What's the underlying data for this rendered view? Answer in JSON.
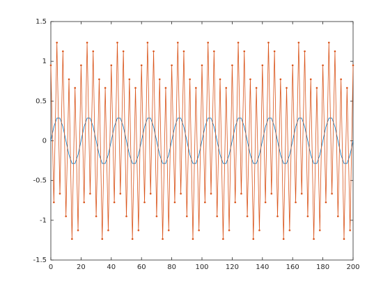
{
  "chart_data": {
    "type": "line",
    "x": [
      0,
      2,
      4,
      6,
      8,
      10,
      12,
      14,
      16,
      18,
      20,
      22,
      24,
      26,
      28,
      30,
      32,
      34,
      36,
      38,
      40,
      42,
      44,
      46,
      48,
      50,
      52,
      54,
      56,
      58,
      60,
      62,
      64,
      66,
      68,
      70,
      72,
      74,
      76,
      78,
      80,
      82,
      84,
      86,
      88,
      90,
      92,
      94,
      96,
      98,
      100,
      102,
      104,
      106,
      108,
      110,
      112,
      114,
      116,
      118,
      120,
      122,
      124,
      126,
      128,
      130,
      132,
      134,
      136,
      138,
      140,
      142,
      144,
      146,
      148,
      150,
      152,
      154,
      156,
      158,
      160,
      162,
      164,
      166,
      168,
      170,
      172,
      174,
      176,
      178,
      180,
      182,
      184,
      186,
      188,
      190,
      192,
      194,
      196,
      198,
      200
    ],
    "series": [
      {
        "color": "#0072bd",
        "markers": false,
        "values": [
          0,
          0.176,
          0.285,
          0.285,
          0.176,
          0,
          -0.176,
          -0.285,
          -0.285,
          -0.176,
          0,
          0.176,
          0.285,
          0.285,
          0.176,
          0,
          -0.176,
          -0.285,
          -0.285,
          -0.176,
          0,
          0.176,
          0.285,
          0.285,
          0.176,
          0,
          -0.176,
          -0.285,
          -0.285,
          -0.176,
          0,
          0.176,
          0.285,
          0.285,
          0.176,
          0,
          -0.176,
          -0.285,
          -0.285,
          -0.176,
          0,
          0.176,
          0.285,
          0.285,
          0.176,
          0,
          -0.176,
          -0.285,
          -0.285,
          -0.176,
          0,
          0.176,
          0.285,
          0.285,
          0.176,
          0,
          -0.176,
          -0.285,
          -0.285,
          -0.176,
          0,
          0.176,
          0.285,
          0.285,
          0.176,
          0,
          -0.176,
          -0.285,
          -0.285,
          -0.176,
          0,
          0.176,
          0.285,
          0.285,
          0.176,
          0,
          -0.176,
          -0.285,
          -0.285,
          -0.176,
          0,
          0.176,
          0.285,
          0.285,
          0.176,
          0,
          -0.176,
          -0.285,
          -0.285,
          -0.176,
          0,
          0.176,
          0.285,
          0.285,
          0.176,
          0,
          -0.176,
          -0.285,
          -0.285,
          -0.176,
          0
        ]
      },
      {
        "color": "#d95319",
        "markers": true,
        "values": [
          0.95,
          -0.774,
          1.235,
          -0.665,
          1.126,
          -0.95,
          0.774,
          -1.235,
          0.665,
          -1.126,
          0.95,
          -0.774,
          1.235,
          -0.665,
          1.126,
          -0.95,
          0.774,
          -1.235,
          0.665,
          -1.126,
          0.95,
          -0.774,
          1.235,
          -0.665,
          1.126,
          -0.95,
          0.774,
          -1.235,
          0.665,
          -1.126,
          0.95,
          -0.774,
          1.235,
          -0.665,
          1.126,
          -0.95,
          0.774,
          -1.235,
          0.665,
          -1.126,
          0.95,
          -0.774,
          1.235,
          -0.665,
          1.126,
          -0.95,
          0.774,
          -1.235,
          0.665,
          -1.126,
          0.95,
          -0.774,
          1.235,
          -0.665,
          1.126,
          -0.95,
          0.774,
          -1.235,
          0.665,
          -1.126,
          0.95,
          -0.774,
          1.235,
          -0.665,
          1.126,
          -0.95,
          0.774,
          -1.235,
          0.665,
          -1.126,
          0.95,
          -0.774,
          1.235,
          -0.665,
          1.126,
          -0.95,
          0.774,
          -1.235,
          0.665,
          -1.126,
          0.95,
          -0.774,
          1.235,
          -0.665,
          1.126,
          -0.95,
          0.774,
          -1.235,
          0.665,
          -1.126,
          0.95,
          -0.774,
          1.235,
          -0.665,
          1.126,
          -0.95,
          0.774,
          -1.235,
          0.665,
          -1.126,
          0.95
        ]
      }
    ],
    "xlim": [
      0,
      200
    ],
    "xticks": [
      0,
      20,
      40,
      60,
      80,
      100,
      120,
      140,
      160,
      180,
      200
    ],
    "ylim": [
      -1.5,
      1.5
    ],
    "yticks": [
      -1.5,
      -1,
      -0.5,
      0,
      0.5,
      1,
      1.5
    ]
  }
}
